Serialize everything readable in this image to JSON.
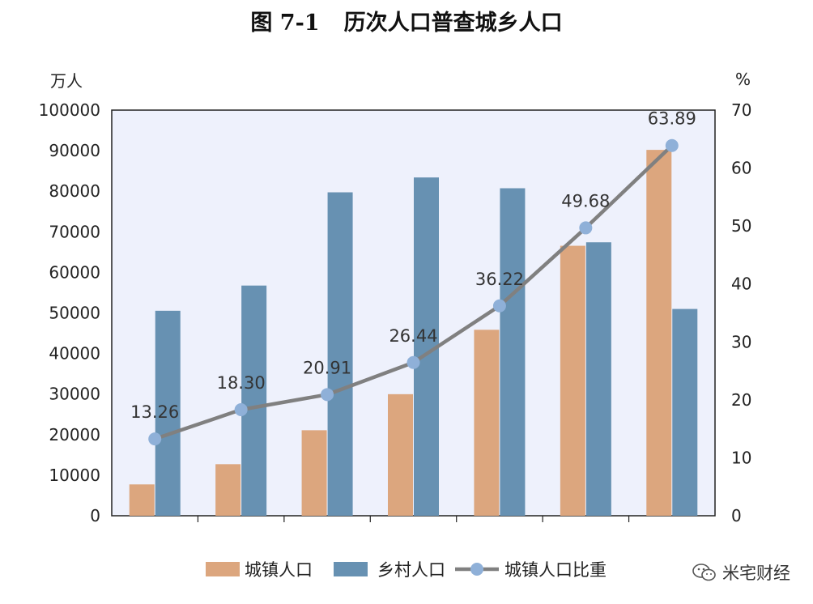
{
  "title": {
    "figure": "图 7-1",
    "text": "历次人口普查城乡人口"
  },
  "left_unit": "万人",
  "right_unit": "%",
  "watermark": "米宅财经",
  "chart_data": {
    "type": "bar",
    "categories": [
      "",
      "",
      "",
      "",
      "",
      "",
      ""
    ],
    "series": [
      {
        "name": "城镇人口",
        "type": "bar",
        "axis": "left",
        "color": "#dca67e",
        "values": [
          7726,
          12710,
          21082,
          29971,
          45844,
          66557,
          90199
        ]
      },
      {
        "name": "乡村人口",
        "type": "bar",
        "axis": "left",
        "color": "#6791b2",
        "values": [
          50534,
          56748,
          79736,
          83397,
          80739,
          67415,
          50979
        ]
      },
      {
        "name": "城镇人口比重",
        "type": "line",
        "axis": "right",
        "color": "#808080",
        "marker_color": "#8fb0d8",
        "values": [
          13.26,
          18.3,
          20.91,
          26.44,
          36.22,
          49.68,
          63.89
        ],
        "labels": [
          "13.26",
          "18.30",
          "20.91",
          "26.44",
          "36.22",
          "49.68",
          "63.89"
        ]
      }
    ],
    "left_axis": {
      "range": [
        0,
        100000
      ],
      "ticks": [
        "0",
        "10000",
        "20000",
        "30000",
        "40000",
        "50000",
        "60000",
        "70000",
        "80000",
        "90000",
        "100000"
      ]
    },
    "right_axis": {
      "range": [
        0,
        70
      ],
      "ticks": [
        "0",
        "10",
        "20",
        "30",
        "40",
        "50",
        "60",
        "70"
      ]
    },
    "plot_background": "#eef1fc",
    "grid": false,
    "legend_position": "bottom"
  }
}
